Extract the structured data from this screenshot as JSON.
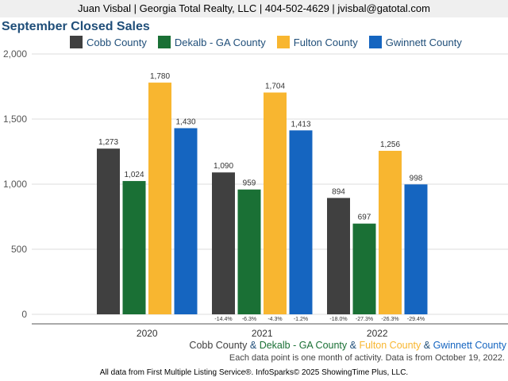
{
  "header": {
    "text": "Juan Visbal | Georgia Total Realty, LLC | 404-502-4629 | jvisbal@gatotal.com"
  },
  "chart_data": {
    "type": "bar",
    "title": "September Closed Sales",
    "categories": [
      "2020",
      "2021",
      "2022"
    ],
    "series": [
      {
        "name": "Cobb County",
        "color": "#404040",
        "values": [
          1273,
          1090,
          894
        ],
        "labels": [
          "1,273",
          "1,090",
          "894"
        ],
        "change": [
          "",
          "-14.4%",
          "-18.0%"
        ]
      },
      {
        "name": "Dekalb - GA County",
        "color": "#1a7035",
        "values": [
          1024,
          959,
          697
        ],
        "labels": [
          "1,024",
          "959",
          "697"
        ],
        "change": [
          "",
          "-6.3%",
          "-27.3%"
        ]
      },
      {
        "name": "Fulton County",
        "color": "#f8b630",
        "values": [
          1780,
          1704,
          1256
        ],
        "labels": [
          "1,780",
          "1,704",
          "1,256"
        ],
        "change": [
          "",
          "-4.3%",
          "-26.3%"
        ]
      },
      {
        "name": "Gwinnett County",
        "color": "#1565c0",
        "values": [
          1430,
          1413,
          998
        ],
        "labels": [
          "1,430",
          "1,413",
          "998"
        ],
        "change": [
          "",
          "-1.2%",
          "-29.4%"
        ]
      }
    ],
    "ylim": [
      0,
      2000
    ],
    "yticks": [
      0,
      500,
      1000,
      1500,
      2000
    ],
    "ytick_labels": [
      "0",
      "500",
      "1,000",
      "1,500",
      "2,000"
    ],
    "legend": "top",
    "grid": true
  },
  "footer": {
    "series_names": [
      "Cobb County",
      "Dekalb - GA County",
      "Fulton County",
      "Gwinnett County"
    ],
    "separator": " & ",
    "note": "Each data point is one month of activity. Data is from October 19, 2022.",
    "source": "All data from First Multiple Listing Service®. InfoSparks© 2025 ShowingTime Plus, LLC."
  }
}
